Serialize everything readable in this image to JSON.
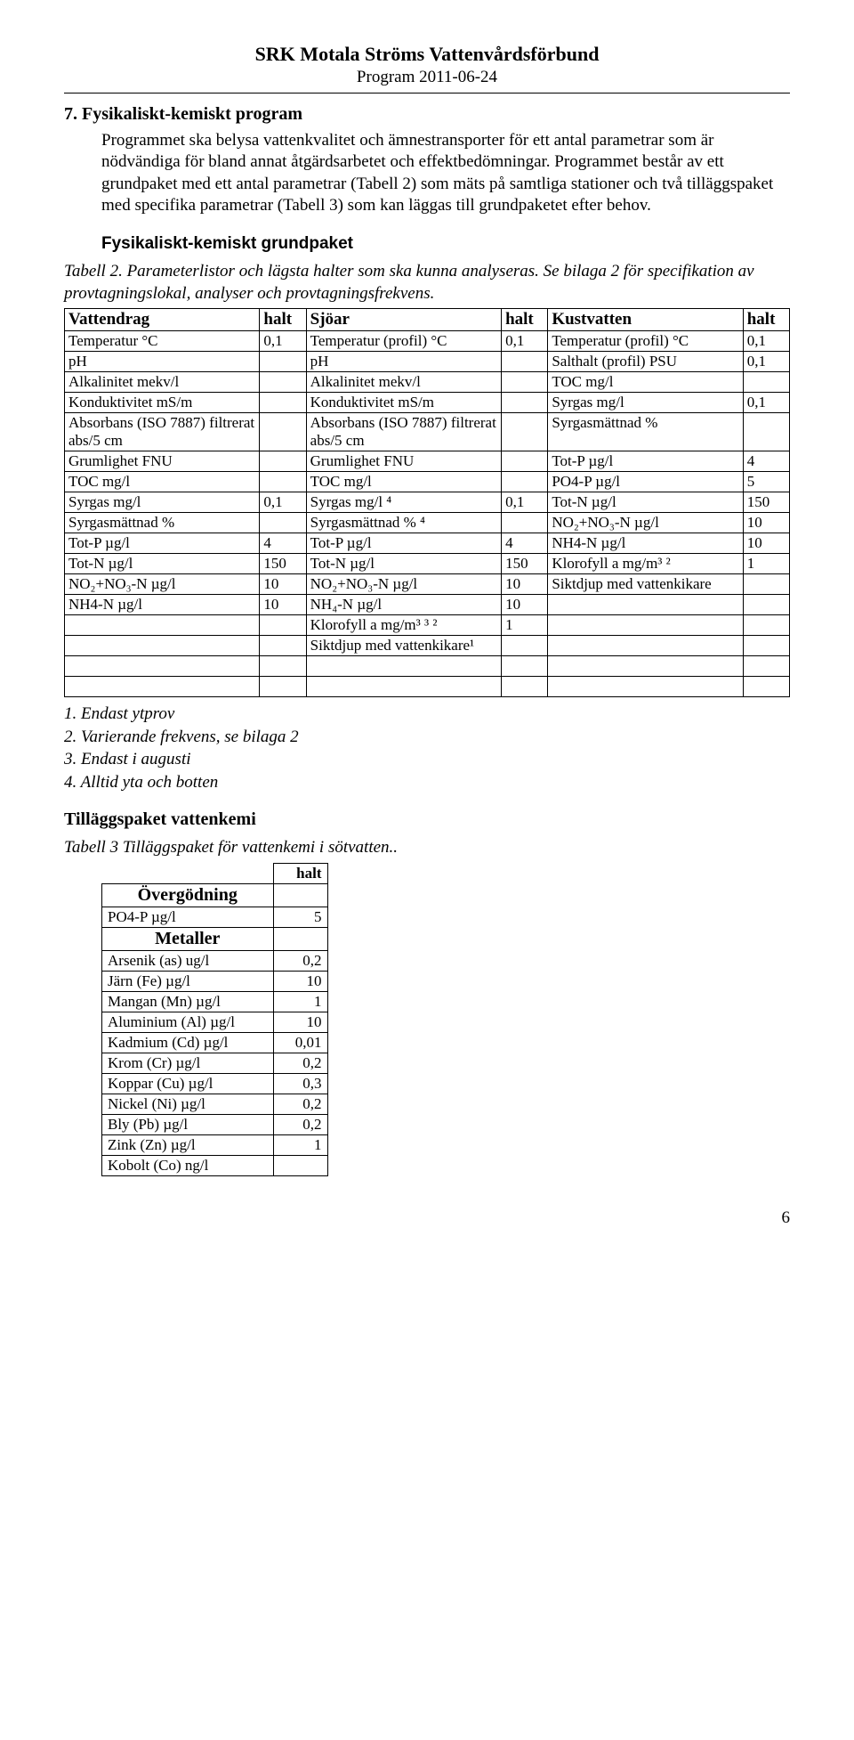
{
  "header": {
    "title": "SRK Motala Ströms Vattenvårdsförbund",
    "program": "Program 2011-06-24"
  },
  "section7": {
    "title": "7. Fysikaliskt-kemiskt program",
    "para1": "Programmet ska belysa vattenkvalitet och ämnestransporter för ett antal parametrar som är nödvändiga för bland annat åtgärdsarbetet och effektbedömningar. Programmet består av ett grundpaket med ett antal parametrar (Tabell 2) som mäts på samtliga stationer och två tilläggspaket med specifika parametrar (Tabell 3) som kan läggas till grundpaketet efter behov."
  },
  "grundpaket": {
    "heading": "Fysikaliskt-kemiskt grundpaket",
    "caption": "Tabell 2. Parameterlistor och lägsta halter som ska kunna analyseras. Se bilaga 2 för specifikation av provtagningslokal, analyser och provtagningsfrekvens.",
    "headers": [
      "Vattendrag",
      "halt",
      "Sjöar",
      "halt",
      "Kustvatten",
      "halt"
    ],
    "rows": [
      [
        "Temperatur °C",
        "0,1",
        "Temperatur (profil) °C",
        "0,1",
        "Temperatur (profil) °C",
        "0,1"
      ],
      [
        "pH",
        "",
        "pH",
        "",
        "Salthalt (profil) PSU",
        "0,1"
      ],
      [
        "Alkalinitet mekv/l",
        "",
        "Alkalinitet mekv/l",
        "",
        "TOC mg/l",
        ""
      ],
      [
        "Konduktivitet mS/m",
        "",
        "Konduktivitet mS/m",
        "",
        "Syrgas mg/l",
        "0,1"
      ],
      [
        "Absorbans (ISO 7887) filtrerat abs/5 cm",
        "",
        "Absorbans (ISO 7887) filtrerat abs/5 cm",
        "",
        "Syrgasmättnad %",
        ""
      ],
      [
        "Grumlighet FNU",
        "",
        "Grumlighet FNU",
        "",
        "Tot-P µg/l",
        "4"
      ],
      [
        "TOC mg/l",
        "",
        "TOC mg/l",
        "",
        "PO4-P µg/l",
        "5"
      ],
      [
        "Syrgas mg/l",
        "0,1",
        "Syrgas mg/l ⁴",
        "0,1",
        "Tot-N µg/l",
        "150"
      ],
      [
        "Syrgasmättnad %",
        "",
        "Syrgasmättnad % ⁴",
        "",
        "NO₂+NO₃-N µg/l",
        "10"
      ],
      [
        "Tot-P µg/l",
        "4",
        "Tot-P µg/l",
        "4",
        "NH4-N µg/l",
        "10"
      ],
      [
        "Tot-N µg/l",
        "150",
        "Tot-N µg/l",
        "150",
        "Klorofyll a mg/m³ ²",
        "1"
      ],
      [
        "NO₂+NO₃-N µg/l",
        "10",
        "NO₂+NO₃-N µg/l",
        "10",
        "Siktdjup med vattenkikare",
        ""
      ],
      [
        "NH4-N µg/l",
        "10",
        "NH₄-N µg/l",
        "10",
        "",
        ""
      ],
      [
        "",
        "",
        "Klorofyll a mg/m³ ³ ²",
        "1",
        "",
        ""
      ],
      [
        "",
        "",
        "Siktdjup med vattenkikare¹",
        "",
        "",
        ""
      ],
      [
        "",
        "",
        "",
        "",
        "",
        ""
      ],
      [
        "",
        "",
        "",
        "",
        "",
        ""
      ]
    ],
    "notes": [
      "1. Endast ytprov",
      "2. Varierande frekvens, se bilaga 2",
      "3. Endast i augusti",
      "4. Alltid yta och botten"
    ]
  },
  "tillagg": {
    "title": "Tilläggspaket vattenkemi",
    "caption": "Tabell 3 Tilläggspaket för vattenkemi i sötvatten..",
    "halt_header": "halt",
    "cat1": "Övergödning",
    "cat2": "Metaller",
    "rows": [
      [
        "PO4-P µg/l",
        "5"
      ],
      [
        "Arsenik (as) ug/l",
        "0,2"
      ],
      [
        "Järn (Fe) µg/l",
        "10"
      ],
      [
        "Mangan (Mn) µg/l",
        "1"
      ],
      [
        "Aluminium (Al) µg/l",
        "10"
      ],
      [
        "Kadmium (Cd) µg/l",
        "0,01"
      ],
      [
        "Krom (Cr) µg/l",
        "0,2"
      ],
      [
        "Koppar (Cu) µg/l",
        "0,3"
      ],
      [
        "Nickel (Ni) µg/l",
        "0,2"
      ],
      [
        "Bly (Pb) µg/l",
        "0,2"
      ],
      [
        "Zink (Zn) µg/l",
        "1"
      ],
      [
        "Kobolt (Co) ng/l",
        ""
      ]
    ]
  },
  "pagenum": "6"
}
